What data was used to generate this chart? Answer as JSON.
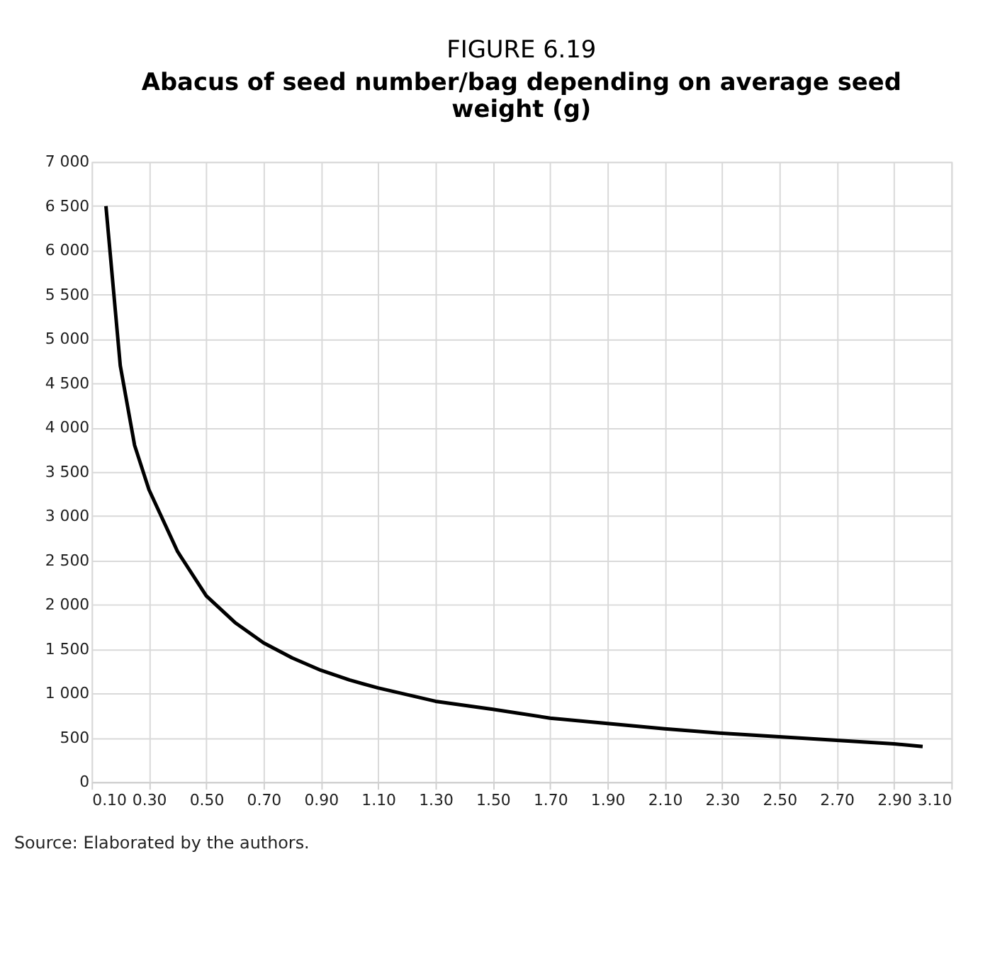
{
  "chart_data": {
    "type": "line",
    "title": "FIGURE 6.19",
    "subtitle": "Abacus of seed number/bag depending on average seed weight (g)",
    "annotations": [
      "Source: Elaborated by the authors."
    ],
    "series": [
      {
        "color": "#000000",
        "x": [
          0.15,
          0.2,
          0.25,
          0.3,
          0.4,
          0.5,
          0.6,
          0.7,
          0.8,
          0.9,
          1.0,
          1.1,
          1.3,
          1.5,
          1.7,
          1.9,
          2.1,
          2.3,
          2.5,
          2.7,
          2.9,
          3.0
        ],
        "values": [
          6500,
          4700,
          3800,
          3300,
          2600,
          2100,
          1800,
          1570,
          1400,
          1260,
          1150,
          1060,
          910,
          820,
          720,
          660,
          600,
          550,
          510,
          470,
          430,
          400
        ]
      }
    ],
    "xlim": [
      0.1,
      3.1
    ],
    "ylim": [
      0,
      7000
    ],
    "xticks": [
      {
        "value": 0.1,
        "label": "0.10"
      },
      {
        "value": 0.3,
        "label": "0.30"
      },
      {
        "value": 0.5,
        "label": "0.50"
      },
      {
        "value": 0.7,
        "label": "0.70"
      },
      {
        "value": 0.9,
        "label": "0.90"
      },
      {
        "value": 1.1,
        "label": "1.10"
      },
      {
        "value": 1.3,
        "label": "1.30"
      },
      {
        "value": 1.5,
        "label": "1.50"
      },
      {
        "value": 1.7,
        "label": "1.70"
      },
      {
        "value": 1.9,
        "label": "1.90"
      },
      {
        "value": 2.1,
        "label": "2.10"
      },
      {
        "value": 2.3,
        "label": "2.30"
      },
      {
        "value": 2.5,
        "label": "2.50"
      },
      {
        "value": 2.7,
        "label": "2.70"
      },
      {
        "value": 2.9,
        "label": "2.90"
      },
      {
        "value": 3.1,
        "label": "3.10"
      }
    ],
    "yticks": [
      0,
      500,
      {
        "value": 1000,
        "label": "1 000"
      },
      {
        "value": 1500,
        "label": "1 500"
      },
      {
        "value": 2000,
        "label": "2 000"
      },
      {
        "value": 2500,
        "label": "2 500"
      },
      {
        "value": 3000,
        "label": "3 000"
      },
      {
        "value": 3500,
        "label": "3 500"
      },
      {
        "value": 4000,
        "label": "4 000"
      },
      {
        "value": 4500,
        "label": "4 500"
      },
      {
        "value": 5000,
        "label": "5 000"
      },
      {
        "value": 5500,
        "label": "5 500"
      },
      {
        "value": 6000,
        "label": "6 000"
      },
      {
        "value": 6500,
        "label": "6 500"
      },
      {
        "value": 7000,
        "label": "7 000"
      }
    ],
    "grid": true,
    "legend": false,
    "marker": "none",
    "line_style": "solid"
  }
}
